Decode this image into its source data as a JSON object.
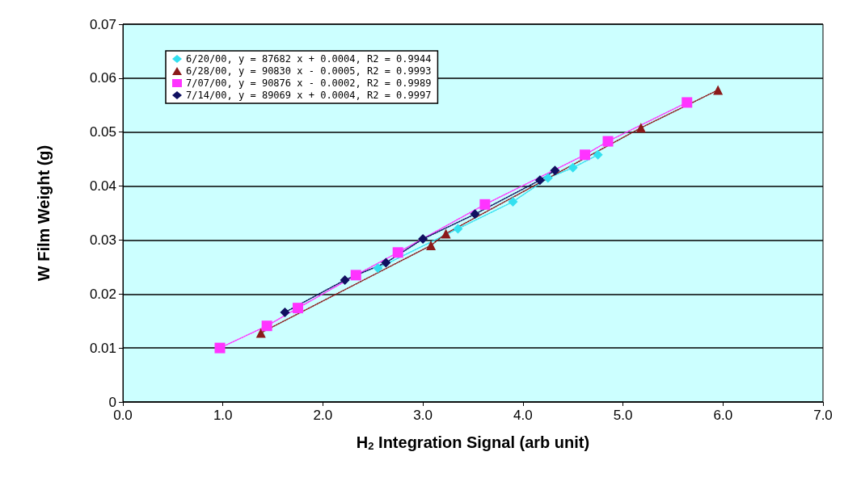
{
  "chart_data": {
    "type": "line",
    "xlabel": "H$_{2}$ Integration Signal (arb unit)",
    "ylabel": "W Film Weight (g)",
    "xlim": [
      0,
      7
    ],
    "xticks": [
      {
        "value": 0,
        "label": "0.0"
      },
      {
        "value": 1,
        "label": "1.0"
      },
      {
        "value": 2,
        "label": "2.0"
      },
      {
        "value": 3,
        "label": "3.0"
      },
      {
        "value": 4,
        "label": "4.0"
      },
      {
        "value": 5,
        "label": "5.0"
      },
      {
        "value": 6,
        "label": "6.0"
      },
      {
        "value": 7,
        "label": "7.0"
      }
    ],
    "ylim": [
      0,
      0.07
    ],
    "yticks": [
      0,
      0.01,
      0.02,
      0.03,
      0.04,
      0.05,
      0.06,
      0.07
    ],
    "grid": "y",
    "legend": "top left",
    "line_style": "dotted",
    "series": [
      {
        "name": "6/20/00, y = 87682 x + 0.0004, R2 = 0.9944",
        "color": "#33e0f0",
        "marker": "diamond",
        "x": [
          2.55,
          2.98,
          3.35,
          3.9,
          4.25,
          4.5,
          4.75
        ],
        "values": [
          0.0248,
          null,
          0.0321,
          0.0371,
          0.0415,
          0.0434,
          0.0458
        ]
      },
      {
        "name": "6/28/00, y = 90830 x - 0.0005, R2 = 0.9993",
        "color": "#8b1a1a",
        "marker": "triangle",
        "x": [
          1.38,
          1.75,
          3.08,
          3.23,
          5.18,
          5.95
        ],
        "values": [
          0.0128,
          null,
          0.029,
          0.0312,
          0.0508,
          0.0578
        ]
      },
      {
        "name": "7/07/00, y = 90876 x - 0.0002, R2 = 0.9989",
        "color": "#ff33ff",
        "marker": "square",
        "x": [
          0.97,
          1.44,
          1.75,
          2.33,
          2.75,
          3.62,
          4.62,
          4.85,
          5.64
        ],
        "values": [
          0.01,
          0.0141,
          0.0174,
          0.0235,
          0.0277,
          0.0366,
          0.0458,
          0.0483,
          0.0555
        ]
      },
      {
        "name": "7/14/00, y = 89069 x + 0.0004, R2 = 0.9997",
        "color": "#101060",
        "marker": "diamond",
        "x": [
          1.62,
          2.22,
          2.63,
          3.0,
          3.52,
          4.17,
          4.32
        ],
        "values": [
          0.0166,
          0.0226,
          0.0258,
          0.0302,
          0.0348,
          0.0411,
          0.0429
        ]
      }
    ]
  }
}
